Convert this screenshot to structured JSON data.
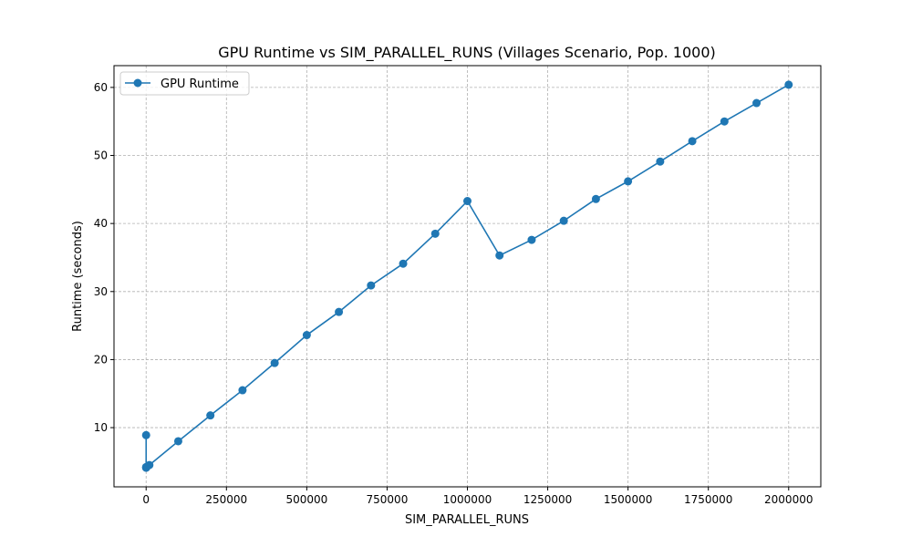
{
  "chart_data": {
    "type": "line",
    "title": "GPU Runtime vs SIM_PARALLEL_RUNS (Villages Scenario, Pop. 1000)",
    "xlabel": "SIM_PARALLEL_RUNS",
    "ylabel": "Runtime (seconds)",
    "xlim": [
      -100000,
      2100000
    ],
    "ylim": [
      1.3,
      63.2
    ],
    "xticks": [
      0,
      250000,
      500000,
      750000,
      1000000,
      1250000,
      1500000,
      1750000,
      2000000
    ],
    "xtick_labels": [
      "0",
      "250000",
      "500000",
      "750000",
      "1000000",
      "1250000",
      "1500000",
      "1750000",
      "2000000"
    ],
    "yticks": [
      10,
      20,
      30,
      40,
      50,
      60
    ],
    "ytick_labels": [
      "10",
      "20",
      "30",
      "40",
      "50",
      "60"
    ],
    "grid": true,
    "legend_position": "top-left",
    "series": [
      {
        "name": "GPU Runtime",
        "color": "#1f77b4",
        "x": [
          1,
          10,
          100,
          1000,
          10000,
          100000,
          200000,
          300000,
          400000,
          500000,
          600000,
          700000,
          800000,
          900000,
          1000000,
          1100000,
          1200000,
          1300000,
          1400000,
          1500000,
          1600000,
          1700000,
          1800000,
          1900000,
          2000000
        ],
        "y": [
          8.9,
          4.2,
          4.1,
          4.2,
          4.5,
          8.0,
          11.8,
          15.5,
          19.5,
          23.6,
          27.0,
          30.9,
          34.1,
          38.5,
          43.3,
          35.3,
          37.6,
          40.4,
          43.6,
          46.2,
          49.1,
          52.1,
          55.0,
          57.7,
          60.4
        ]
      }
    ]
  }
}
